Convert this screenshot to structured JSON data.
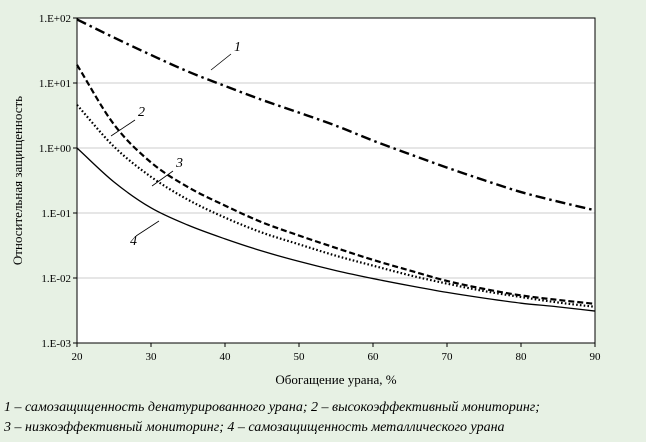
{
  "chart_data": {
    "type": "line",
    "title": "",
    "xlabel": "Обогащение урана, %",
    "ylabel": "Относительная защищенность",
    "xlim": [
      20,
      90
    ],
    "ylim": [
      0.001,
      100
    ],
    "yscale": "log",
    "x_ticks": [
      20,
      30,
      40,
      50,
      60,
      70,
      80,
      90
    ],
    "x_tick_labels": [
      "20",
      "30",
      "40",
      "50",
      "60",
      "70",
      "80",
      "90"
    ],
    "y_ticks": [
      0.001,
      0.01,
      0.1,
      1,
      10,
      100
    ],
    "y_tick_labels": [
      "1.E-03",
      "1.E-02",
      "1.E-01",
      "1.E+00",
      "1.E+01",
      "1.E+02"
    ],
    "grid": "horizontal",
    "legend": "none",
    "x": [
      20,
      25,
      30,
      35,
      40,
      45,
      50,
      55,
      60,
      65,
      70,
      75,
      80,
      85,
      90
    ],
    "series": [
      {
        "name": "1",
        "style": "dash-dot",
        "values": [
          95,
          50,
          27,
          15,
          9,
          5.5,
          3.5,
          2.2,
          1.3,
          0.8,
          0.5,
          0.32,
          0.21,
          0.15,
          0.11
        ]
      },
      {
        "name": "2",
        "style": "dashed",
        "values": [
          19,
          2.3,
          0.6,
          0.25,
          0.13,
          0.072,
          0.045,
          0.029,
          0.019,
          0.013,
          0.009,
          0.0068,
          0.0054,
          0.0046,
          0.004
        ]
      },
      {
        "name": "3",
        "style": "dotted",
        "values": [
          4.6,
          1.05,
          0.36,
          0.16,
          0.085,
          0.05,
          0.033,
          0.022,
          0.0155,
          0.011,
          0.0082,
          0.0063,
          0.0051,
          0.0042,
          0.0036
        ]
      },
      {
        "name": "4",
        "style": "solid",
        "values": [
          1.0,
          0.3,
          0.12,
          0.065,
          0.04,
          0.026,
          0.018,
          0.013,
          0.0098,
          0.0076,
          0.006,
          0.0049,
          0.0041,
          0.0036,
          0.0031
        ]
      }
    ]
  },
  "caption": {
    "line1": "1 – самозащищенность денатурированного урана; 2 – высокоэффективный мониторинг;",
    "line2": "3 – низкоэффективный мониторинг; 4 – самозащищенность металлического урана"
  }
}
